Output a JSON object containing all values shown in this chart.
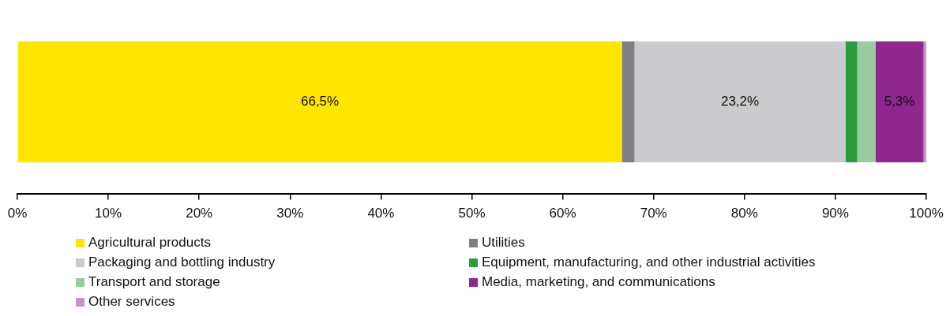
{
  "chart_data": {
    "type": "bar",
    "orientation": "horizontal",
    "stacked": true,
    "categories": [
      null
    ],
    "series": [
      {
        "name": "Agricultural products",
        "color": "#ffe600",
        "values": [
          66.5
        ],
        "value_labels": [
          "66,5%"
        ]
      },
      {
        "name": "Utilities",
        "color": "#807f83",
        "values": [
          1.4
        ],
        "value_labels": [
          null
        ]
      },
      {
        "name": "Packaging and bottling industry",
        "color": "#cbcbcd",
        "values": [
          23.2
        ],
        "value_labels": [
          "23,2%"
        ]
      },
      {
        "name": "Equipment, manufacturing, and other industrial activities",
        "color": "#2e9a3e",
        "values": [
          1.3
        ],
        "value_labels": [
          null
        ]
      },
      {
        "name": "Transport and storage",
        "color": "#99cca0",
        "values": [
          2.0
        ],
        "value_labels": [
          null
        ]
      },
      {
        "name": "Media, marketing, and communications",
        "color": "#8f278e",
        "values": [
          5.3
        ],
        "value_labels": [
          "5,3%"
        ]
      },
      {
        "name": "Other services",
        "color": "#c993c9",
        "values": [
          0.3
        ],
        "value_labels": [
          null
        ]
      }
    ],
    "xlim": [
      0,
      100
    ],
    "xticks": [
      {
        "value": 0,
        "label": "0%"
      },
      {
        "value": 10,
        "label": "10%"
      },
      {
        "value": 20,
        "label": "20%"
      },
      {
        "value": 30,
        "label": "30%"
      },
      {
        "value": 40,
        "label": "40%"
      },
      {
        "value": 50,
        "label": "50%"
      },
      {
        "value": 60,
        "label": "60%"
      },
      {
        "value": 70,
        "label": "70%"
      },
      {
        "value": 80,
        "label": "80%"
      },
      {
        "value": 90,
        "label": "90%"
      },
      {
        "value": 100,
        "label": "100%"
      }
    ],
    "tick_labels": "x",
    "grid": false,
    "legend": "bottom"
  }
}
